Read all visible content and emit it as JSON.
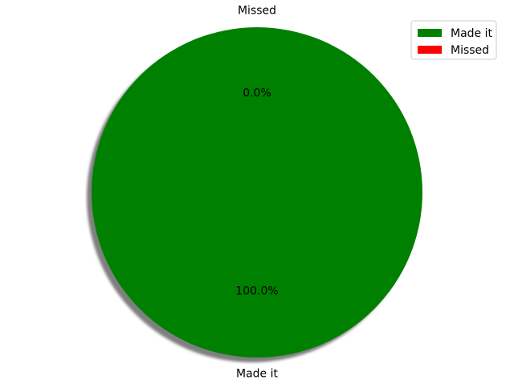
{
  "chart_data": {
    "type": "pie",
    "title": "",
    "slices": [
      {
        "label": "Made it",
        "value": 100.0,
        "pct_label": "100.0%",
        "color": "#008000"
      },
      {
        "label": "Missed",
        "value": 0.0,
        "pct_label": "0.0%",
        "color": "#ff0000"
      }
    ],
    "shadow": true,
    "legend": {
      "placement": "top-right",
      "entries": [
        "Made it",
        "Missed"
      ]
    }
  }
}
